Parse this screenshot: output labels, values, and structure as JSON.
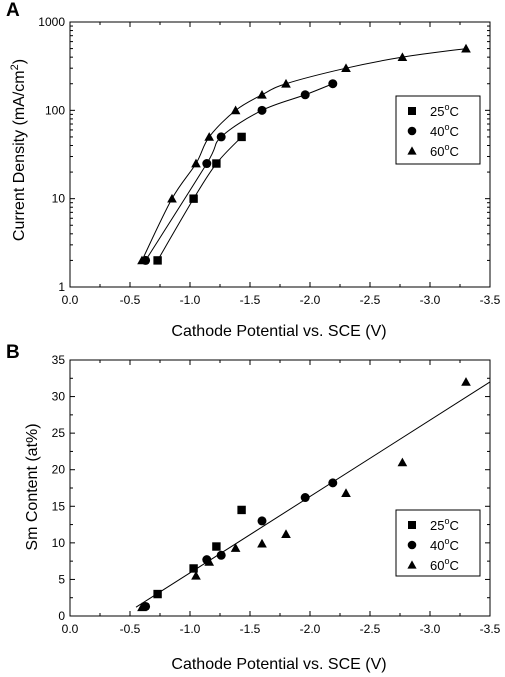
{
  "chart_data": [
    {
      "panel_label": "A",
      "type": "scatter",
      "xlabel": "Cathode Potential vs. SCE (V)",
      "ylabel_main": "Current Density (mA/cm",
      "ylabel_sup": "2",
      "ylabel_close": ")",
      "xlim": [
        0.0,
        -3.5
      ],
      "ylim": [
        1,
        1000
      ],
      "y_scale": "log",
      "x_ticks": [
        "0.0",
        "-0.5",
        "-1.0",
        "-1.5",
        "-2.0",
        "-2.5",
        "-3.0",
        "-3.5"
      ],
      "x_tick_values": [
        0.0,
        -0.5,
        -1.0,
        -1.5,
        -2.0,
        -2.5,
        -3.0,
        -3.5
      ],
      "y_ticks": [
        "1",
        "10",
        "100",
        "1000"
      ],
      "y_tick_values": [
        1,
        10,
        100,
        1000
      ],
      "legend_position": "middle-right",
      "fit_curves": true,
      "series": [
        {
          "name": "25",
          "unit": "C",
          "marker": "square",
          "x": [
            -0.73,
            -1.03,
            -1.22,
            -1.43
          ],
          "y": [
            2,
            10,
            25,
            50
          ]
        },
        {
          "name": "40",
          "unit": "C",
          "marker": "circle",
          "x": [
            -0.63,
            -1.14,
            -1.26,
            -1.6,
            -1.96,
            -2.19
          ],
          "y": [
            2,
            25,
            50,
            100,
            150,
            200
          ]
        },
        {
          "name": "60",
          "unit": "C",
          "marker": "triangle",
          "x": [
            -0.6,
            -0.85,
            -1.05,
            -1.16,
            -1.38,
            -1.6,
            -1.8,
            -2.3,
            -2.77,
            -3.3
          ],
          "y": [
            2,
            10,
            25,
            50,
            100,
            150,
            200,
            300,
            400,
            500
          ]
        }
      ]
    },
    {
      "panel_label": "B",
      "type": "scatter",
      "xlabel": "Cathode Potential vs. SCE (V)",
      "ylabel": "Sm Content (at%)",
      "xlim": [
        0.0,
        -3.5
      ],
      "ylim": [
        0,
        35
      ],
      "x_ticks": [
        "0.0",
        "-0.5",
        "-1.0",
        "-1.5",
        "-2.0",
        "-2.5",
        "-3.0",
        "-3.5"
      ],
      "x_tick_values": [
        0.0,
        -0.5,
        -1.0,
        -1.5,
        -2.0,
        -2.5,
        -3.0,
        -3.5
      ],
      "y_ticks": [
        "0",
        "5",
        "10",
        "15",
        "20",
        "25",
        "30",
        "35"
      ],
      "y_tick_values": [
        0,
        5,
        10,
        15,
        20,
        25,
        30,
        35
      ],
      "legend_position": "lower-right",
      "fit_line": {
        "x": [
          -0.55,
          -3.5
        ],
        "y": [
          1.2,
          32.0
        ]
      },
      "series": [
        {
          "name": "25",
          "unit": "C",
          "marker": "square",
          "x": [
            -0.73,
            -1.03,
            -1.22,
            -1.43
          ],
          "y": [
            3.0,
            6.5,
            9.5,
            14.5
          ]
        },
        {
          "name": "40",
          "unit": "C",
          "marker": "circle",
          "x": [
            -0.63,
            -1.14,
            -1.26,
            -1.6,
            -1.96,
            -2.19
          ],
          "y": [
            1.3,
            7.7,
            8.3,
            13.0,
            16.2,
            18.2
          ]
        },
        {
          "name": "60",
          "unit": "C",
          "marker": "triangle",
          "x": [
            -0.6,
            -1.05,
            -1.16,
            -1.38,
            -1.6,
            -1.8,
            -2.3,
            -2.77,
            -3.3
          ],
          "y": [
            1.2,
            5.5,
            7.4,
            9.3,
            9.9,
            11.2,
            16.8,
            21.0,
            32.0
          ]
        }
      ]
    }
  ]
}
